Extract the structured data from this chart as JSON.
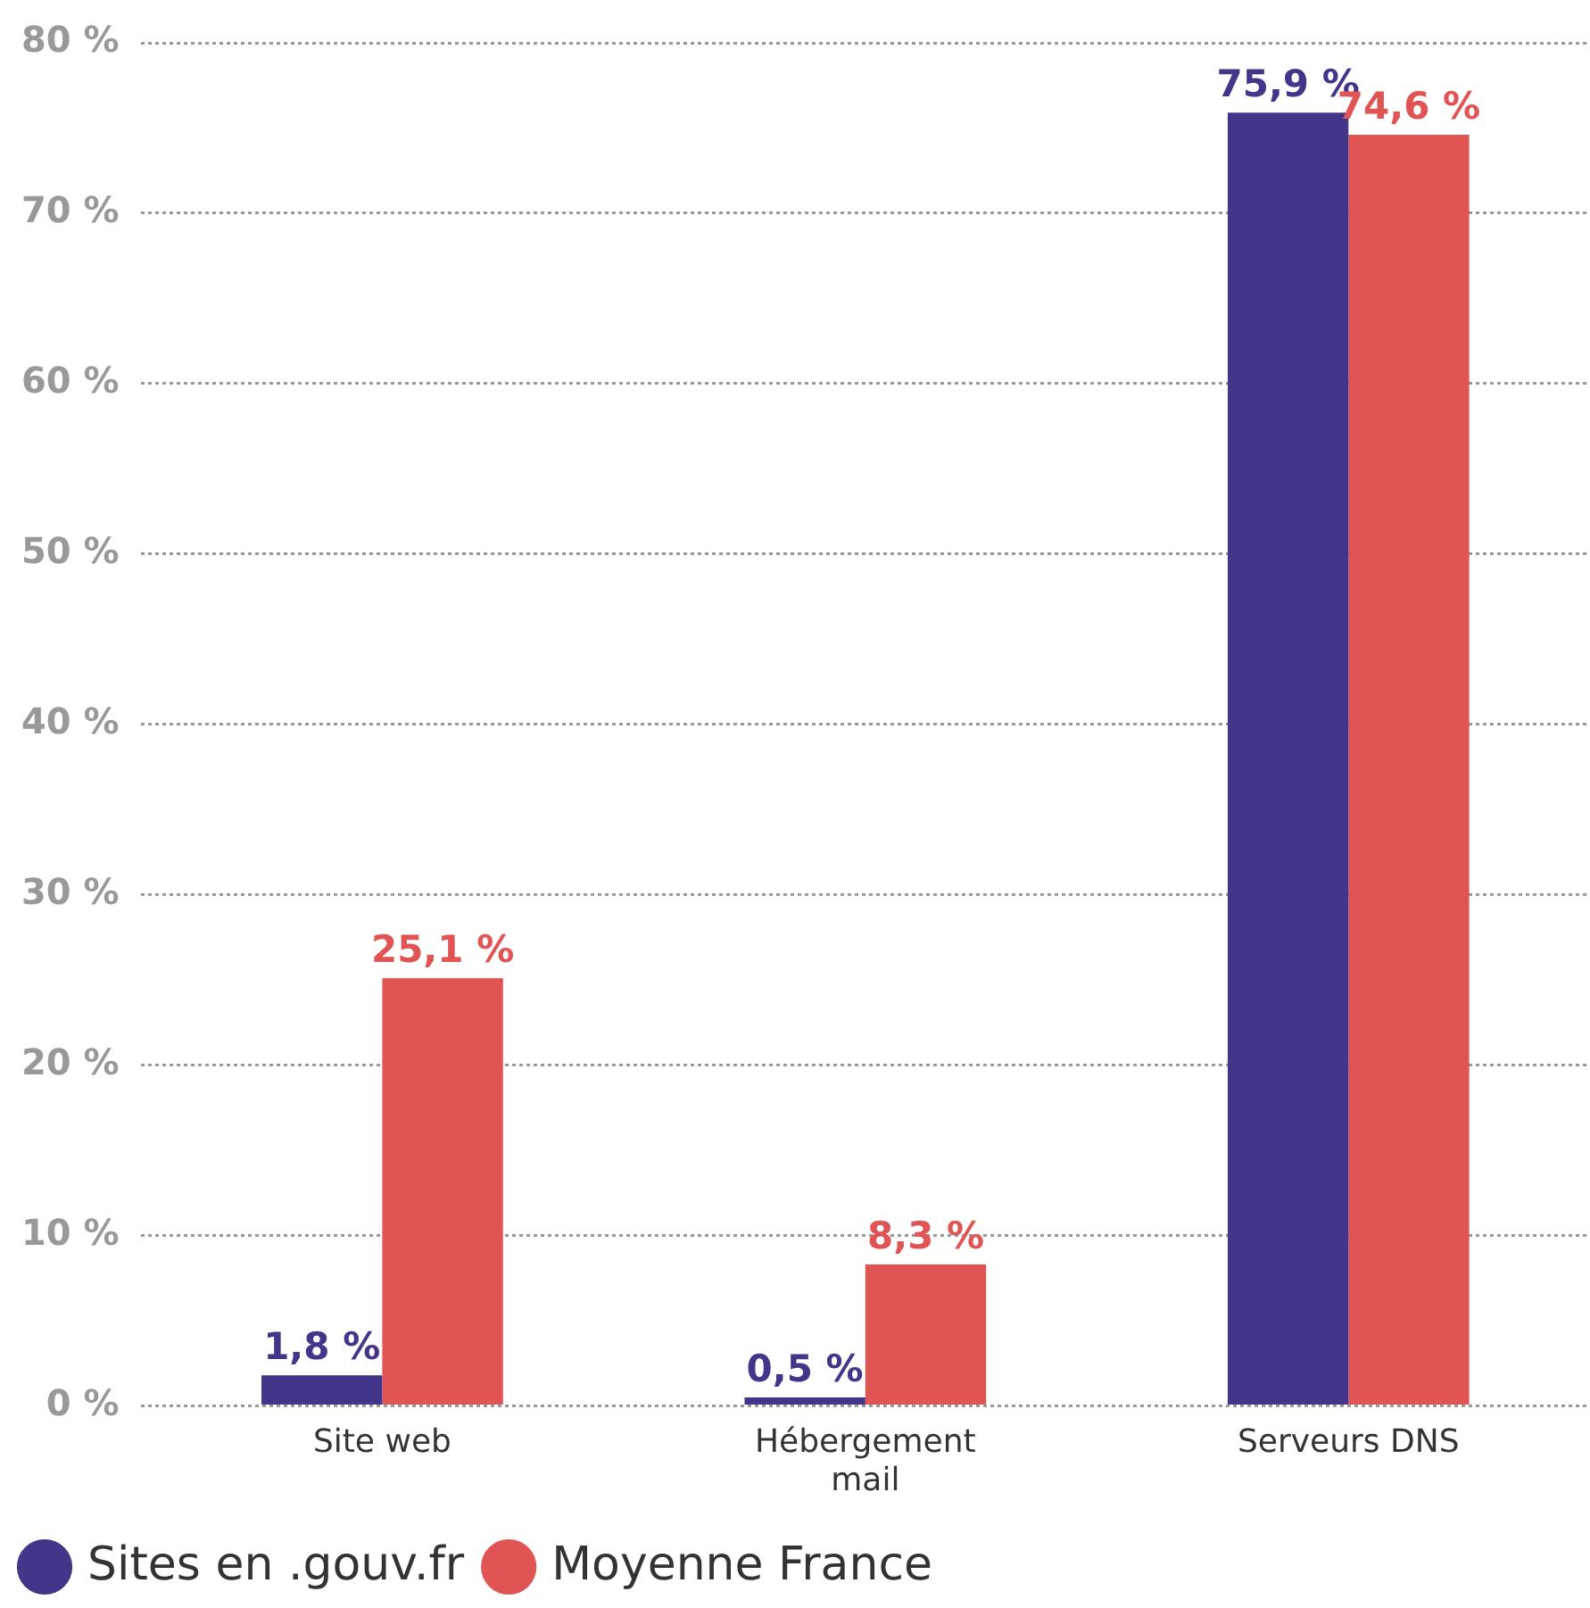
{
  "chart_data": {
    "type": "bar",
    "categories": [
      "Site web",
      "Hébergement mail",
      "Serveurs DNS"
    ],
    "series": [
      {
        "name": "Sites en .gouv.fr",
        "color": "#42358a",
        "values": [
          1.8,
          0.5,
          75.9
        ],
        "value_labels": [
          "1,8 %",
          "0,5 %",
          "75,9 %"
        ]
      },
      {
        "name": "Moyenne France",
        "color": "#e05453",
        "values": [
          25.1,
          8.3,
          74.6
        ],
        "value_labels": [
          "25,1 %",
          "8,3 %",
          "74,6 %"
        ]
      }
    ],
    "ylim": [
      0,
      80
    ],
    "yticks": [
      {
        "value": 0,
        "label": "0 %"
      },
      {
        "value": 10,
        "label": "10 %"
      },
      {
        "value": 20,
        "label": "20 %"
      },
      {
        "value": 30,
        "label": "30 %"
      },
      {
        "value": 40,
        "label": "40 %"
      },
      {
        "value": 50,
        "label": "50 %"
      },
      {
        "value": 60,
        "label": "60 %"
      },
      {
        "value": 70,
        "label": "70 %"
      },
      {
        "value": 80,
        "label": "80 %"
      }
    ],
    "grid": "y",
    "legend": "bottom left"
  }
}
